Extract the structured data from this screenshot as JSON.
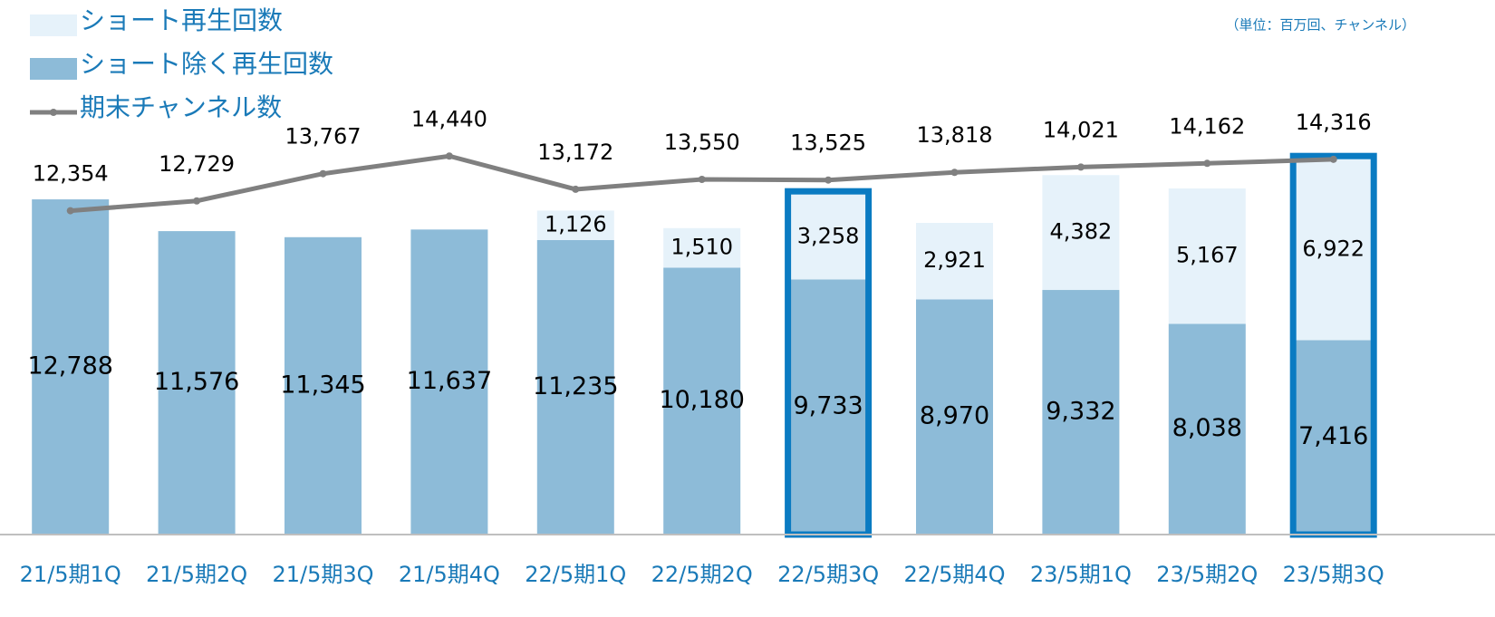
{
  "chart_data": {
    "type": "stacked_bar_line",
    "note": "（単位：百万回、チャンネル）",
    "categories": [
      "21/5期1Q",
      "21/5期2Q",
      "21/5期3Q",
      "21/5期4Q",
      "22/5期1Q",
      "22/5期2Q",
      "22/5期3Q",
      "22/5期4Q",
      "23/5期1Q",
      "23/5期2Q",
      "23/5期3Q"
    ],
    "series": [
      {
        "name": "ショート除く再生回数",
        "type": "bar",
        "color": "#8dbbd8",
        "values": [
          12788,
          11576,
          11345,
          11637,
          11235,
          10180,
          9733,
          8970,
          9332,
          8038,
          7416
        ],
        "value_labels": [
          "12,788",
          "11,576",
          "11,345",
          "11,637",
          "11,235",
          "10,180",
          "9,733",
          "8,970",
          "9,332",
          "8,038",
          "7,416"
        ]
      },
      {
        "name": "ショート再生回数",
        "type": "bar",
        "color": "#e6f2fa",
        "values": [
          null,
          null,
          null,
          null,
          1126,
          1510,
          3258,
          2921,
          4382,
          5167,
          6922
        ],
        "value_labels": [
          null,
          null,
          null,
          null,
          "1,126",
          "1,510",
          "3,258",
          "2,921",
          "4,382",
          "5,167",
          "6,922"
        ]
      },
      {
        "name": "期末チャンネル数",
        "type": "line",
        "color": "#808080",
        "values": [
          12354,
          12729,
          13767,
          14440,
          13172,
          13550,
          13525,
          13818,
          14021,
          14162,
          14316
        ],
        "value_labels": [
          "12,354",
          "12,729",
          "13,767",
          "14,440",
          "13,172",
          "13,550",
          "13,525",
          "13,818",
          "14,021",
          "14,162",
          "14,316"
        ]
      }
    ],
    "ylim": [
      0,
      20000
    ],
    "highlight": [
      6,
      10
    ],
    "highlight_color": "#0a7bc2"
  }
}
